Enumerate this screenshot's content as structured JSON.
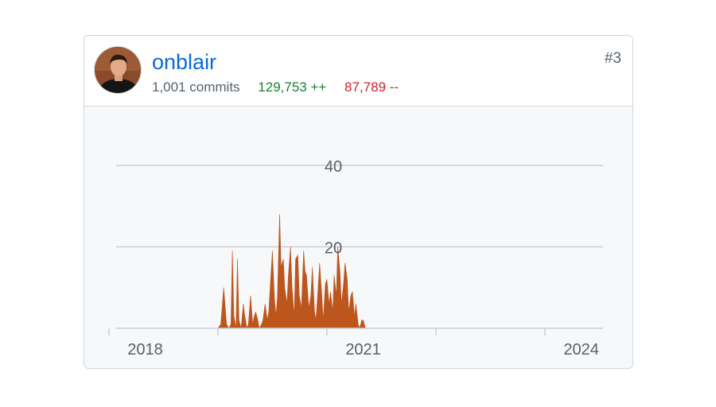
{
  "contributor": {
    "username": "onblair",
    "commits": "1,001 commits",
    "additions": "129,753 ++",
    "deletions": "87,789 --",
    "rank": "#3",
    "avatar_icon": "profile-photo-icon"
  },
  "colors": {
    "area": "#bd561d",
    "grid": "#c9cfd6",
    "link": "#0969da",
    "additions": "#1a7f37",
    "deletions": "#cf222e"
  },
  "chart_data": {
    "type": "area",
    "title": "",
    "xlabel": "",
    "ylabel": "",
    "x_ticks": [
      "2018",
      "2021",
      "2024"
    ],
    "y_ticks": [
      "20",
      "40"
    ],
    "xlim": [
      2017.6,
      2024.3
    ],
    "ylim": [
      0,
      40
    ],
    "grid": true,
    "series": [
      {
        "x": [
          2019.0,
          2019.04,
          2019.08,
          2019.12,
          2019.15,
          2019.18,
          2019.2,
          2019.22,
          2019.25,
          2019.27,
          2019.29,
          2019.32,
          2019.35,
          2019.37,
          2019.4,
          2019.42,
          2019.45,
          2019.48,
          2019.5,
          2019.52,
          2019.55,
          2019.57,
          2019.6,
          2019.62,
          2019.65,
          2019.68,
          2019.7,
          2019.72,
          2019.75,
          2019.78,
          2019.8,
          2019.82,
          2019.85,
          2019.87,
          2019.9,
          2019.92,
          2019.95,
          2019.97,
          2020.0,
          2020.02,
          2020.05,
          2020.07,
          2020.1,
          2020.12,
          2020.15,
          2020.18,
          2020.2,
          2020.22,
          2020.25,
          2020.28,
          2020.3,
          2020.33,
          2020.35,
          2020.38,
          2020.4,
          2020.43,
          2020.45,
          2020.48,
          2020.5,
          2020.53,
          2020.55,
          2020.58,
          2020.6,
          2020.63,
          2020.65,
          2020.68,
          2020.7,
          2020.73,
          2020.75,
          2020.78,
          2020.8,
          2020.83,
          2020.85,
          2020.88,
          2020.9,
          2020.93,
          2020.95,
          2020.98,
          2021.0,
          2021.03,
          2021.05,
          2021.08,
          2021.1,
          2021.13,
          2021.15,
          2021.18,
          2021.2,
          2021.23,
          2021.25,
          2021.28,
          2021.3,
          2021.33,
          2021.35,
          2021.38,
          2021.4,
          2021.43,
          2021.45,
          2021.48,
          2021.5,
          2021.53,
          2021.55,
          2021.58,
          2021.6,
          2021.63,
          2021.65,
          2021.68,
          2021.7,
          2021.73,
          2021.75,
          2021.78,
          2021.8,
          2021.83,
          2021.85,
          2021.88,
          2021.9,
          2021.93,
          2021.95,
          2021.98,
          2022.0,
          2022.03,
          2022.05,
          2022.08,
          2022.1,
          2022.13,
          2022.15,
          2022.18,
          2022.2,
          2022.23,
          2022.25,
          2022.3,
          2022.35,
          2022.38,
          2022.4,
          2022.42,
          2022.45,
          2022.5
        ],
        "y": [
          0,
          1,
          10,
          1,
          0,
          1,
          19,
          3,
          0,
          17,
          2,
          0,
          6,
          3,
          0,
          1,
          8,
          1,
          3,
          4,
          2,
          0,
          1,
          2,
          6,
          2,
          4,
          10,
          19,
          7,
          3,
          8,
          28,
          15,
          17,
          10,
          6,
          13,
          20,
          10,
          3,
          17,
          18,
          8,
          5,
          19,
          14,
          13,
          5,
          8,
          15,
          4,
          2,
          10,
          16,
          8,
          2,
          11,
          12,
          6,
          9,
          4,
          13,
          8,
          20,
          14,
          6,
          11,
          16,
          12,
          4,
          8,
          9,
          3,
          6,
          1,
          0,
          2,
          2,
          0,
          0,
          0,
          0,
          0,
          0,
          0,
          0,
          0,
          0,
          0,
          0,
          0,
          0,
          0,
          0,
          0,
          0,
          0,
          0,
          0,
          0,
          0,
          0,
          0,
          0,
          0,
          0,
          0,
          0,
          0,
          0,
          0,
          0,
          0,
          0,
          0,
          0,
          0,
          0,
          0,
          0,
          0,
          0,
          0,
          0,
          0,
          0,
          0,
          0,
          0,
          0,
          0,
          0,
          0,
          0,
          0
        ]
      }
    ]
  }
}
